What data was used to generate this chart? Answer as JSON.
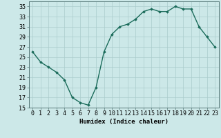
{
  "x": [
    0,
    1,
    2,
    3,
    4,
    5,
    6,
    7,
    8,
    9,
    10,
    11,
    12,
    13,
    14,
    15,
    16,
    17,
    18,
    19,
    20,
    21,
    22,
    23
  ],
  "y": [
    26,
    24,
    23,
    22,
    20.5,
    17,
    16,
    15.5,
    19,
    26,
    29.5,
    31,
    31.5,
    32.5,
    34,
    34.5,
    34,
    34,
    35,
    34.5,
    34.5,
    31,
    29,
    27
  ],
  "line_color": "#1a6b5a",
  "marker": "D",
  "marker_size": 1.8,
  "bg_color": "#cce8e8",
  "grid_color": "#aacccc",
  "xlabel": "Humidex (Indice chaleur)",
  "xlim": [
    -0.5,
    23.5
  ],
  "ylim": [
    15,
    36
  ],
  "yticks": [
    15,
    17,
    19,
    21,
    23,
    25,
    27,
    29,
    31,
    33,
    35
  ],
  "xticks": [
    0,
    1,
    2,
    3,
    4,
    5,
    6,
    7,
    8,
    9,
    10,
    11,
    12,
    13,
    14,
    15,
    16,
    17,
    18,
    19,
    20,
    21,
    22,
    23
  ],
  "xlabel_fontsize": 6.5,
  "tick_fontsize": 6,
  "line_width": 1.0
}
